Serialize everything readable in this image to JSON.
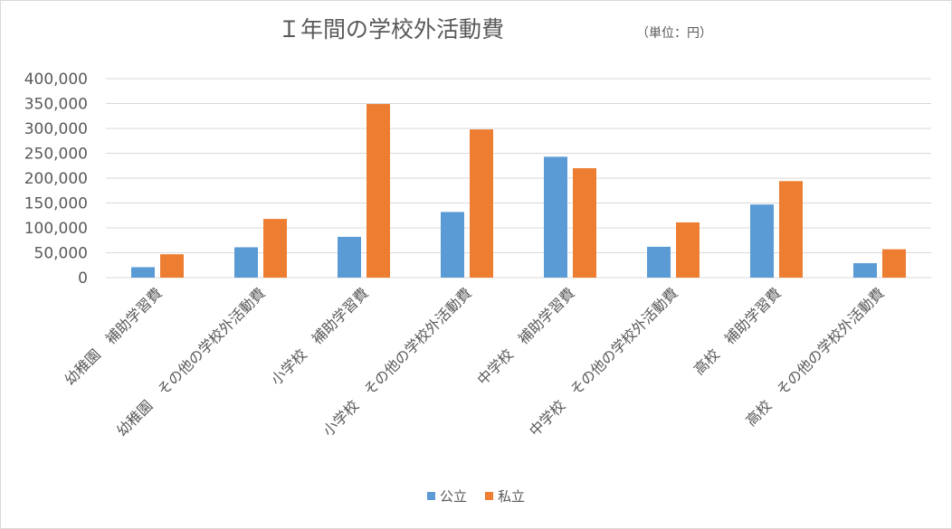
{
  "chart_data": {
    "type": "bar",
    "title": "Ｉ年間の学校外活動費",
    "subtitle": "（単位：円）",
    "categories": [
      "幼稚園　補助学習費",
      "幼稚園　その他の学校外活動費",
      "小学校　補助学習費",
      "小学校　その他の学校外活動費",
      "中学校　補助学習費",
      "中学校　その他の学校外活動費",
      "高校　補助学習費",
      "高校　その他の学校外活動費"
    ],
    "series": [
      {
        "name": "公立",
        "color": "#5b9bd5",
        "values": [
          21000,
          61000,
          82000,
          132000,
          243000,
          62000,
          147000,
          29000
        ]
      },
      {
        "name": "私立",
        "color": "#ed7d31",
        "values": [
          47000,
          118000,
          349000,
          298000,
          220000,
          111000,
          194000,
          57000
        ]
      }
    ],
    "y_ticks": [
      "0",
      "50,000",
      "100,000",
      "150,000",
      "200,000",
      "250,000",
      "300,000",
      "350,000",
      "400,000"
    ],
    "ylim": [
      0,
      400000
    ],
    "grid": true,
    "legend_position": "bottom"
  }
}
